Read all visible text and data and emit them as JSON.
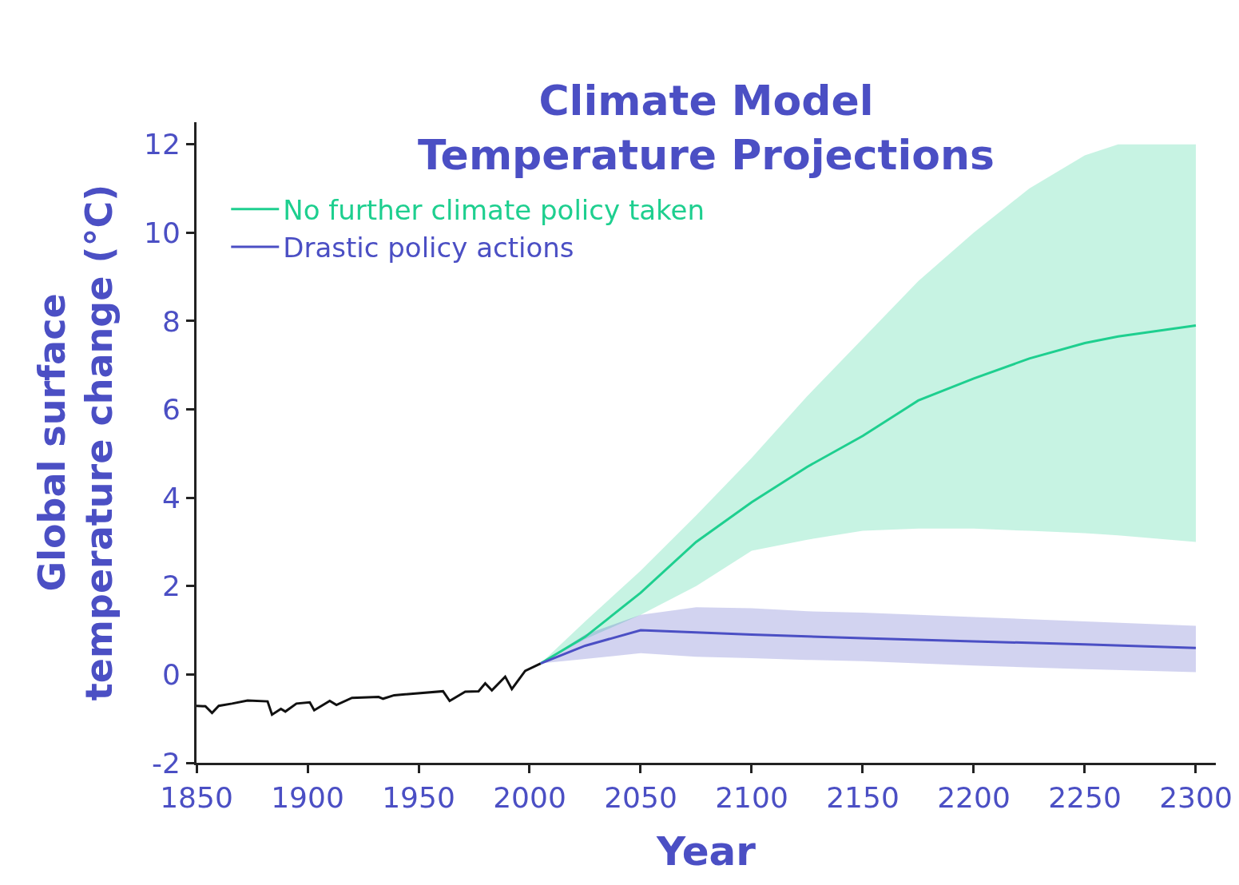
{
  "chart_data": {
    "type": "line",
    "title": "Climate Model\nTemperature Projections",
    "xlabel": "Year",
    "ylabel": "Global surface\ntemperature change (°C)",
    "xlim": [
      1850,
      2309
    ],
    "xticks": [
      1850,
      1900,
      1950,
      2000,
      2050,
      2100,
      2150,
      2200,
      2250,
      2300
    ],
    "ylim": [
      -2,
      12.5
    ],
    "yticks": [
      -2,
      0,
      2,
      4,
      6,
      8,
      10,
      12
    ],
    "grid": false,
    "legend": "top left",
    "marker": "none",
    "line_style": "solid",
    "series": [
      {
        "color": "#111111",
        "x": [
          1850,
          1854,
          1857,
          1860,
          1866,
          1873,
          1882,
          1884,
          1888,
          1890,
          1895,
          1901,
          1903,
          1910,
          1913,
          1920,
          1932,
          1934,
          1939,
          1961,
          1964,
          1971,
          1977,
          1980,
          1983,
          1989,
          1992,
          1998,
          2005
        ],
        "values": [
          -0.71,
          -0.72,
          -0.87,
          -0.71,
          -0.66,
          -0.59,
          -0.61,
          -0.91,
          -0.78,
          -0.84,
          -0.66,
          -0.63,
          -0.81,
          -0.6,
          -0.69,
          -0.53,
          -0.51,
          -0.55,
          -0.47,
          -0.38,
          -0.6,
          -0.39,
          -0.38,
          -0.2,
          -0.36,
          -0.05,
          -0.33,
          0.08,
          0.25
        ]
      },
      {
        "name": "No further climate policy taken",
        "color": "#1ecf8f",
        "x": [
          2005,
          2025,
          2050,
          2075,
          2100,
          2125,
          2150,
          2175,
          2200,
          2225,
          2250,
          2265,
          2300
        ],
        "values": [
          0.25,
          0.85,
          1.85,
          3.0,
          3.9,
          4.7,
          5.4,
          6.2,
          6.7,
          7.15,
          7.5,
          7.65,
          7.9
        ],
        "lower": [
          0.25,
          0.8,
          1.35,
          2.0,
          2.8,
          3.05,
          3.25,
          3.3,
          3.3,
          3.25,
          3.2,
          3.15,
          3.0
        ],
        "upper": [
          0.25,
          1.2,
          2.35,
          3.6,
          4.9,
          6.3,
          7.6,
          8.9,
          10.0,
          11.0,
          11.75,
          12,
          12
        ]
      },
      {
        "name": "Drastic policy actions",
        "color": "#4b4fc4",
        "x": [
          2005,
          2025,
          2050,
          2075,
          2100,
          2125,
          2150,
          2200,
          2250,
          2300
        ],
        "values": [
          0.25,
          0.65,
          1.0,
          0.95,
          0.9,
          0.86,
          0.82,
          0.75,
          0.68,
          0.6
        ],
        "lower": [
          0.25,
          0.35,
          0.48,
          0.4,
          0.37,
          0.33,
          0.3,
          0.2,
          0.12,
          0.05
        ],
        "upper": [
          0.25,
          0.9,
          1.35,
          1.52,
          1.5,
          1.43,
          1.4,
          1.3,
          1.2,
          1.1
        ]
      }
    ]
  }
}
